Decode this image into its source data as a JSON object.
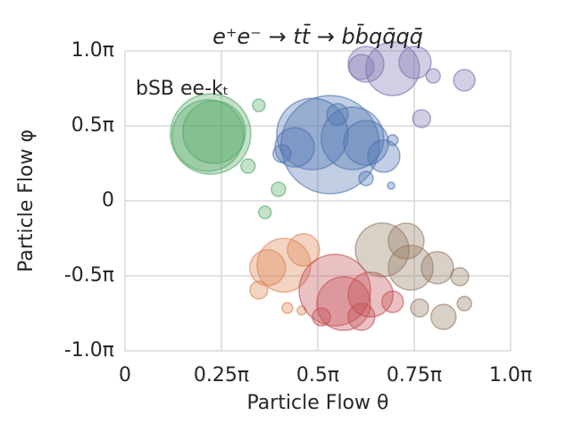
{
  "chart_data": {
    "type": "bubble",
    "title": "e⁺e⁻ → tt̄ → bb̄qq̄qq̄",
    "annotation": "bSB ee-kₜ",
    "x_label": "Particle Flow θ",
    "y_label": "Particle Flow φ",
    "xlim": [
      0,
      1
    ],
    "ylim": [
      -1,
      1
    ],
    "xticks": [
      0,
      {
        "value": 0.25,
        "label": "0.25π"
      },
      {
        "value": 0.5,
        "label": "0.5π"
      },
      {
        "value": 0.75,
        "label": "0.75π"
      },
      {
        "value": 1,
        "label": "1.0π"
      }
    ],
    "yticks": [
      {
        "value": -1,
        "label": "-1.0π"
      },
      {
        "value": -0.5,
        "label": "-0.5π"
      },
      0,
      {
        "value": 0.5,
        "label": "0.5π"
      },
      {
        "value": 1,
        "label": "1.0π"
      }
    ],
    "grid": true,
    "series": [
      {
        "color": "#55a868",
        "x": [
          0.222,
          0.215,
          0.231,
          0.347,
          0.319,
          0.398,
          0.363
        ],
        "y": [
          0.446,
          0.435,
          0.458,
          0.637,
          0.232,
          0.077,
          -0.077
        ],
        "sizes": [
          45,
          40,
          35,
          7,
          8,
          8,
          7
        ]
      },
      {
        "color": "#4c72b0",
        "x": [
          0.532,
          0.486,
          0.59,
          0.625,
          0.44,
          0.671,
          0.551,
          0.625,
          0.694,
          0.69,
          0.407
        ],
        "y": [
          0.375,
          0.446,
          0.417,
          0.387,
          0.357,
          0.298,
          0.577,
          0.149,
          0.405,
          0.101,
          0.315
        ],
        "sizes": [
          55,
          40,
          35,
          25,
          22,
          18,
          12,
          8,
          6,
          4,
          10
        ]
      },
      {
        "color": "#8172b2",
        "x": [
          0.694,
          0.625,
          0.752,
          0.613,
          0.769,
          0.88,
          0.799
        ],
        "y": [
          0.881,
          0.911,
          0.923,
          0.893,
          0.548,
          0.804,
          0.833
        ],
        "sizes": [
          30,
          20,
          18,
          14,
          10,
          12,
          8
        ]
      },
      {
        "color": "#dd8452",
        "x": [
          0.412,
          0.37,
          0.463,
          0.347,
          0.421,
          0.458
        ],
        "y": [
          -0.429,
          -0.446,
          -0.327,
          -0.595,
          -0.714,
          -0.732
        ],
        "sizes": [
          30,
          20,
          18,
          10,
          6,
          5
        ]
      },
      {
        "color": "#c44e52",
        "x": [
          0.544,
          0.567,
          0.637,
          0.613,
          0.694,
          0.509
        ],
        "y": [
          -0.595,
          -0.685,
          -0.625,
          -0.774,
          -0.673,
          -0.774
        ],
        "sizes": [
          40,
          30,
          25,
          15,
          12,
          10
        ]
      },
      {
        "color": "#937860",
        "x": [
          0.667,
          0.741,
          0.81,
          0.826,
          0.868,
          0.88,
          0.729,
          0.764
        ],
        "y": [
          -0.327,
          -0.446,
          -0.446,
          -0.774,
          -0.506,
          -0.685,
          -0.268,
          -0.714
        ],
        "sizes": [
          30,
          25,
          18,
          14,
          10,
          8,
          20,
          10
        ]
      }
    ]
  }
}
